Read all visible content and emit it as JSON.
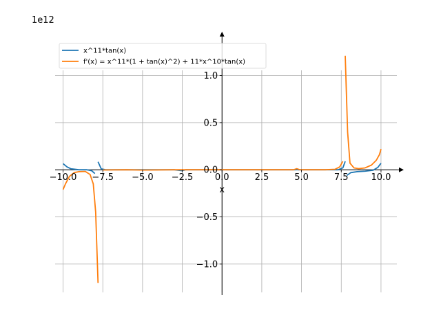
{
  "chart_data": {
    "type": "line",
    "scale_note": "1e12",
    "xlabel": "x",
    "ylabel": "",
    "xlim": [
      -10.5,
      11.0
    ],
    "ylim": [
      -1.33,
      1.45
    ],
    "grid": true,
    "legend_position": "top-left",
    "x_ticks": [
      -10,
      -7.5,
      -5,
      -2.5,
      0,
      2.5,
      5,
      7.5,
      10
    ],
    "x_tick_labels": [
      "−10.0",
      "−7.5",
      "−5.0",
      "−2.5",
      "0.0",
      "2.5",
      "5.0",
      "7.5",
      "10.0"
    ],
    "y_ticks": [
      -1.0,
      -0.5,
      0.0,
      0.5,
      1.0
    ],
    "y_tick_labels": [
      "−1.0",
      "−0.5",
      "0.0",
      "0.5",
      "1.0"
    ],
    "series": [
      {
        "name": "x^11*tan(x)",
        "color": "#1f77b4",
        "segments": [
          [
            [
              -10.0,
              0.065
            ],
            [
              -9.75,
              0.03
            ],
            [
              -9.5,
              0.01
            ],
            [
              -9.0,
              0.0
            ],
            [
              -8.5,
              0.0
            ],
            [
              -8.2,
              -0.01
            ],
            [
              -8.0,
              -0.04
            ]
          ],
          [
            [
              -7.8,
              0.085
            ],
            [
              -7.6,
              0.01
            ],
            [
              -7.3,
              0.0
            ],
            [
              -6.0,
              0.0
            ],
            [
              -3.0,
              0.0
            ],
            [
              -2.5,
              -0.01
            ],
            [
              -2.3,
              0.0
            ],
            [
              0.0,
              0.0
            ],
            [
              4.6,
              0.0
            ],
            [
              4.7,
              0.002
            ],
            [
              4.8,
              0.0
            ],
            [
              6.5,
              0.0
            ],
            [
              7.3,
              0.0
            ],
            [
              7.6,
              0.02
            ],
            [
              7.75,
              0.09
            ]
          ],
          [
            [
              7.85,
              -0.06
            ],
            [
              8.1,
              -0.03
            ],
            [
              8.5,
              -0.02
            ],
            [
              9.0,
              -0.015
            ],
            [
              9.5,
              -0.005
            ],
            [
              9.8,
              0.025
            ],
            [
              10.0,
              0.07
            ]
          ]
        ]
      },
      {
        "name": "f'(x) = x^11*(1 + tan(x)^2) + 11*x^10*tan(x)",
        "color": "#ff7f0e",
        "segments": [
          [
            [
              -10.0,
              -0.21
            ],
            [
              -9.85,
              -0.15
            ],
            [
              -9.6,
              -0.07
            ],
            [
              -9.3,
              -0.03
            ],
            [
              -9.0,
              -0.02
            ],
            [
              -8.6,
              -0.018
            ],
            [
              -8.3,
              -0.05
            ],
            [
              -8.1,
              -0.15
            ],
            [
              -7.95,
              -0.45
            ],
            [
              -7.8,
              -1.2
            ]
          ],
          [
            [
              -7.5,
              -0.002
            ],
            [
              -6.0,
              0.0
            ],
            [
              -5.0,
              -0.003
            ],
            [
              -3.0,
              0.0
            ],
            [
              0.0,
              0.0
            ],
            [
              4.5,
              0.0
            ],
            [
              4.7,
              0.012
            ],
            [
              4.9,
              0.0
            ],
            [
              6.5,
              0.0
            ],
            [
              7.1,
              0.005
            ],
            [
              7.4,
              0.03
            ],
            [
              7.6,
              0.09
            ]
          ],
          [
            [
              7.75,
              1.21
            ],
            [
              7.9,
              0.4
            ],
            [
              8.05,
              0.07
            ],
            [
              8.3,
              0.02
            ],
            [
              8.6,
              0.012
            ],
            [
              9.0,
              0.02
            ],
            [
              9.4,
              0.05
            ],
            [
              9.7,
              0.1
            ],
            [
              9.9,
              0.16
            ],
            [
              10.0,
              0.22
            ]
          ]
        ]
      }
    ]
  }
}
